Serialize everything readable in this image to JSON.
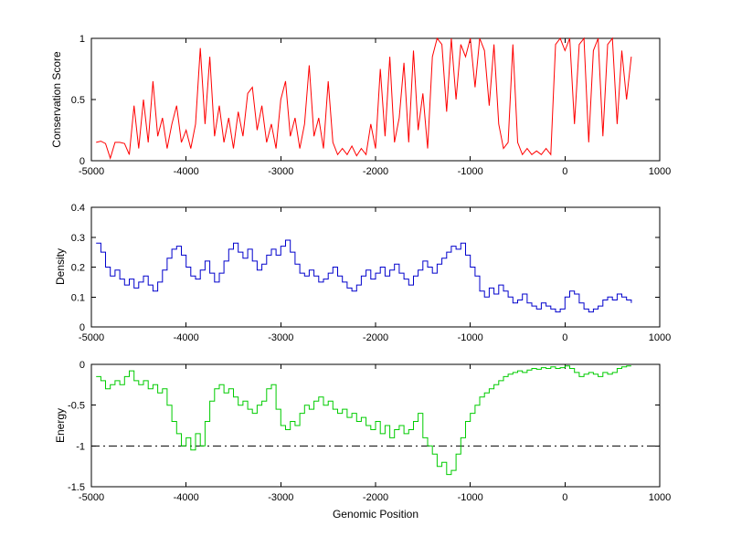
{
  "figure": {
    "background": "#ffffff",
    "xlabel": "Genomic Position"
  },
  "chart_data": [
    {
      "type": "line",
      "name": "conservation",
      "ylabel": "Conservation Score",
      "color": "#ff0000",
      "xlim": [
        -5000,
        1000
      ],
      "ylim": [
        0,
        1
      ],
      "xticks": [
        -5000,
        -4000,
        -3000,
        -2000,
        -1000,
        0,
        1000
      ],
      "yticks": [
        0,
        0.5,
        1
      ],
      "step": false,
      "x_start": -4950,
      "x_step": 50,
      "values": [
        0.15,
        0.16,
        0.14,
        0.02,
        0.15,
        0.15,
        0.14,
        0.05,
        0.45,
        0.1,
        0.5,
        0.15,
        0.65,
        0.2,
        0.35,
        0.1,
        0.3,
        0.45,
        0.15,
        0.25,
        0.1,
        0.3,
        0.92,
        0.3,
        0.85,
        0.2,
        0.45,
        0.15,
        0.35,
        0.1,
        0.4,
        0.2,
        0.55,
        0.6,
        0.25,
        0.45,
        0.15,
        0.3,
        0.1,
        0.5,
        0.65,
        0.2,
        0.35,
        0.1,
        0.3,
        0.78,
        0.2,
        0.35,
        0.1,
        0.65,
        0.15,
        0.05,
        0.1,
        0.05,
        0.12,
        0.04,
        0.1,
        0.05,
        0.3,
        0.1,
        0.75,
        0.2,
        0.85,
        0.15,
        0.35,
        0.8,
        0.15,
        0.9,
        0.25,
        0.55,
        0.1,
        0.85,
        1.0,
        0.95,
        0.4,
        1.0,
        0.5,
        0.95,
        0.85,
        1.0,
        0.6,
        1.0,
        0.9,
        0.45,
        0.95,
        0.3,
        0.1,
        0.15,
        0.95,
        0.15,
        0.05,
        0.1,
        0.05,
        0.08,
        0.05,
        0.1,
        0.05,
        0.95,
        1.0,
        0.9,
        1.0,
        0.3,
        0.95,
        1.0,
        0.15,
        0.9,
        1.0,
        0.2,
        0.95,
        1.0,
        0.3,
        0.9,
        0.5,
        0.85
      ]
    },
    {
      "type": "line",
      "name": "density",
      "ylabel": "Density",
      "color": "#0000cc",
      "xlim": [
        -5000,
        1000
      ],
      "ylim": [
        0,
        0.4
      ],
      "xticks": [
        -5000,
        -4000,
        -3000,
        -2000,
        -1000,
        0,
        1000
      ],
      "yticks": [
        0,
        0.1,
        0.2,
        0.3,
        0.4
      ],
      "step": true,
      "x_start": -4950,
      "x_step": 50,
      "values": [
        0.28,
        0.25,
        0.2,
        0.17,
        0.19,
        0.16,
        0.14,
        0.16,
        0.13,
        0.15,
        0.17,
        0.14,
        0.12,
        0.15,
        0.19,
        0.23,
        0.26,
        0.27,
        0.24,
        0.2,
        0.17,
        0.16,
        0.19,
        0.22,
        0.18,
        0.15,
        0.18,
        0.22,
        0.26,
        0.28,
        0.25,
        0.23,
        0.26,
        0.22,
        0.19,
        0.21,
        0.24,
        0.26,
        0.24,
        0.27,
        0.29,
        0.25,
        0.21,
        0.18,
        0.17,
        0.19,
        0.17,
        0.15,
        0.16,
        0.18,
        0.2,
        0.17,
        0.15,
        0.13,
        0.12,
        0.14,
        0.17,
        0.19,
        0.16,
        0.18,
        0.2,
        0.17,
        0.19,
        0.21,
        0.18,
        0.16,
        0.14,
        0.17,
        0.19,
        0.22,
        0.2,
        0.18,
        0.21,
        0.23,
        0.25,
        0.27,
        0.26,
        0.28,
        0.24,
        0.2,
        0.17,
        0.12,
        0.1,
        0.13,
        0.11,
        0.14,
        0.12,
        0.1,
        0.08,
        0.09,
        0.11,
        0.08,
        0.07,
        0.06,
        0.08,
        0.07,
        0.06,
        0.05,
        0.06,
        0.1,
        0.12,
        0.11,
        0.08,
        0.06,
        0.05,
        0.06,
        0.07,
        0.09,
        0.1,
        0.09,
        0.11,
        0.1,
        0.09,
        0.08
      ]
    },
    {
      "type": "line",
      "name": "energy",
      "ylabel": "Energy",
      "color": "#00cc00",
      "xlim": [
        -5000,
        1000
      ],
      "ylim": [
        -1.5,
        0
      ],
      "xticks": [
        -5000,
        -4000,
        -3000,
        -2000,
        -1000,
        0,
        1000
      ],
      "yticks": [
        -1.5,
        -1,
        -0.5,
        0
      ],
      "step": true,
      "x_start": -4950,
      "x_step": 50,
      "ref_line": {
        "y": -1,
        "style": "dash-dot",
        "color": "#000000"
      },
      "values": [
        -0.15,
        -0.2,
        -0.3,
        -0.25,
        -0.2,
        -0.25,
        -0.15,
        -0.08,
        -0.2,
        -0.25,
        -0.2,
        -0.3,
        -0.25,
        -0.35,
        -0.3,
        -0.5,
        -0.7,
        -0.85,
        -1.0,
        -0.9,
        -1.05,
        -0.85,
        -1.0,
        -0.7,
        -0.45,
        -0.3,
        -0.25,
        -0.35,
        -0.3,
        -0.4,
        -0.5,
        -0.45,
        -0.55,
        -0.6,
        -0.5,
        -0.45,
        -0.3,
        -0.25,
        -0.55,
        -0.75,
        -0.8,
        -0.7,
        -0.75,
        -0.6,
        -0.5,
        -0.55,
        -0.45,
        -0.4,
        -0.5,
        -0.45,
        -0.55,
        -0.6,
        -0.55,
        -0.65,
        -0.6,
        -0.7,
        -0.65,
        -0.75,
        -0.8,
        -0.7,
        -0.85,
        -0.75,
        -0.9,
        -0.8,
        -0.75,
        -0.85,
        -0.8,
        -0.7,
        -0.6,
        -0.9,
        -1.0,
        -1.1,
        -1.25,
        -1.2,
        -1.35,
        -1.3,
        -1.1,
        -0.9,
        -0.7,
        -0.6,
        -0.5,
        -0.4,
        -0.35,
        -0.3,
        -0.25,
        -0.2,
        -0.15,
        -0.12,
        -0.1,
        -0.08,
        -0.1,
        -0.07,
        -0.05,
        -0.06,
        -0.04,
        -0.05,
        -0.03,
        -0.05,
        -0.04,
        -0.02,
        -0.05,
        -0.1,
        -0.15,
        -0.12,
        -0.1,
        -0.12,
        -0.15,
        -0.1,
        -0.12,
        -0.1,
        -0.05,
        -0.03,
        -0.02,
        -0.02
      ]
    }
  ]
}
